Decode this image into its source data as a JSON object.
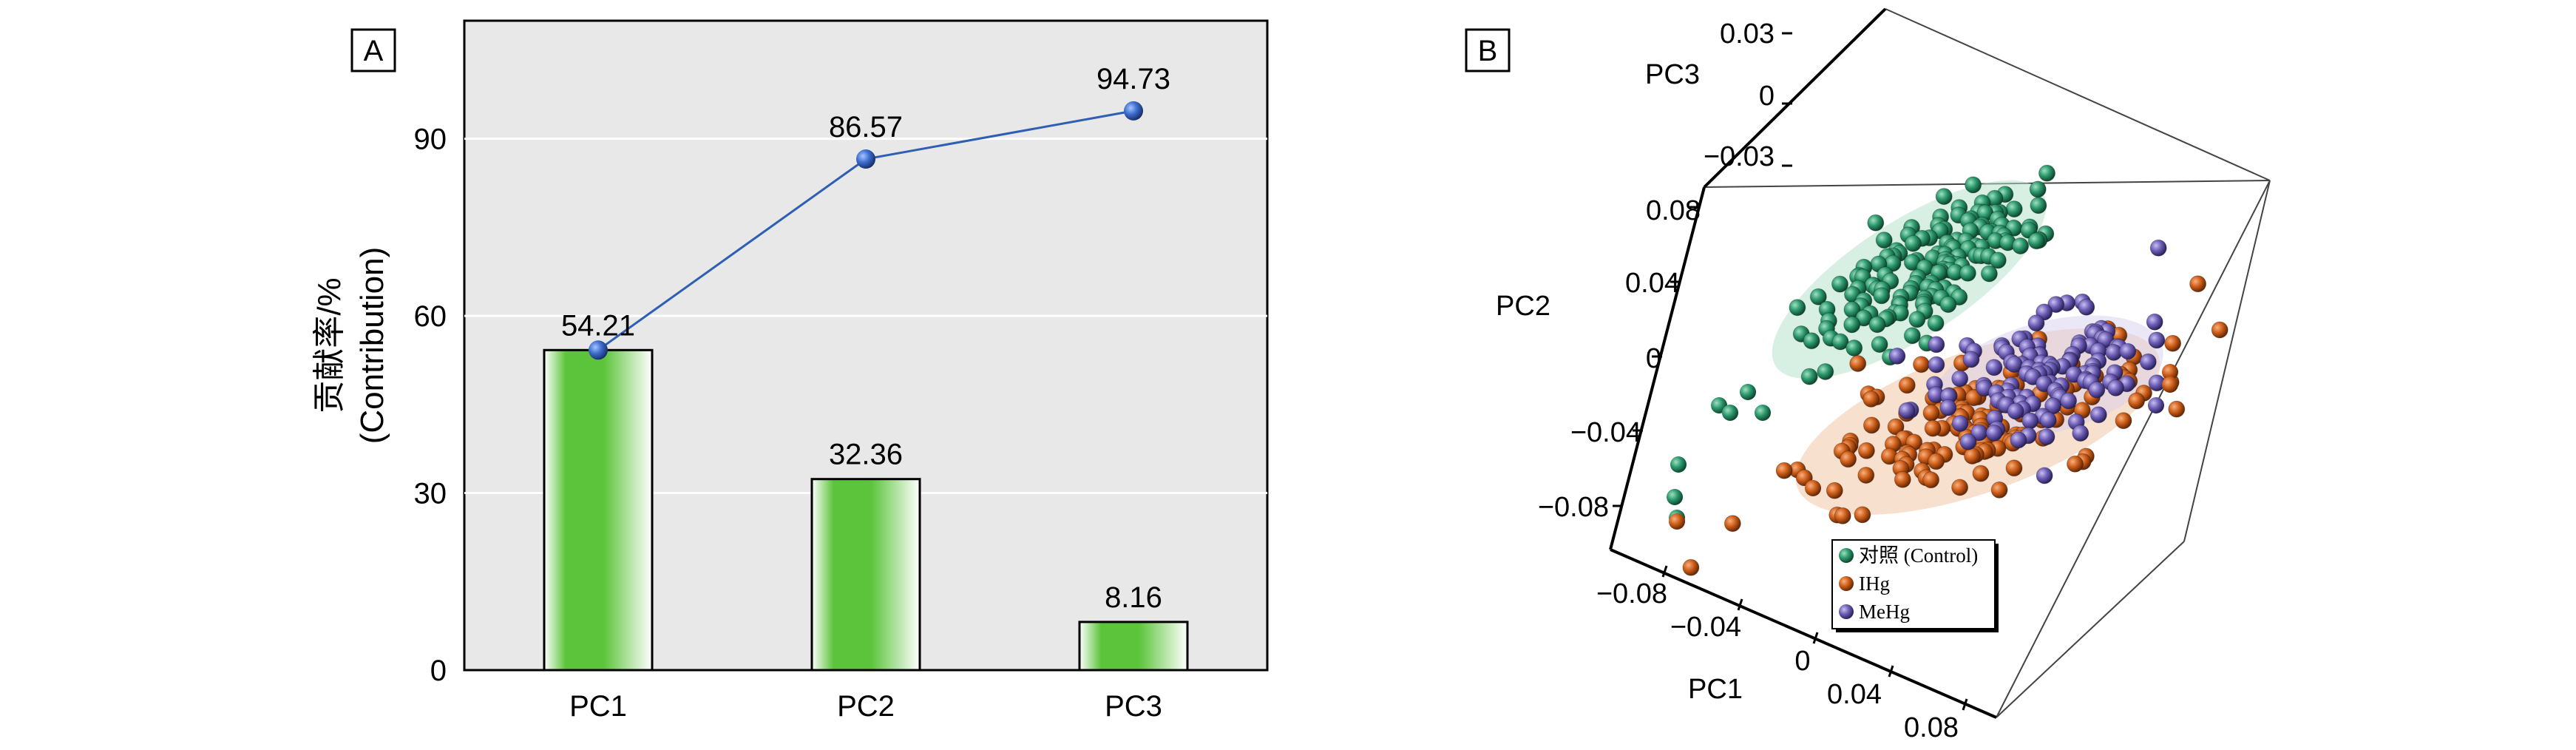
{
  "chart_data": [
    {
      "panel_label": "A",
      "type": "bar",
      "categories": [
        "PC1",
        "PC2",
        "PC3"
      ],
      "series": [
        {
          "values": [
            54.21,
            32.36,
            8.16
          ],
          "labels": [
            "54.21",
            "32.36",
            "8.16"
          ]
        },
        {
          "type": "line",
          "values": [
            54.21,
            86.57,
            94.73
          ],
          "labels": [
            "54.21",
            "86.57",
            "94.73"
          ]
        }
      ],
      "ylabel_line1": "贡献率/%",
      "ylabel_line2": "(Contribution)",
      "ylim": [
        0,
        110
      ],
      "yticks": [
        "0",
        "30",
        "60",
        "90"
      ],
      "grid": "horizontal",
      "colors": {
        "bar": "#5cc43a",
        "bar_edge": "#ffffff",
        "line": "#2f5fb3",
        "marker": "#3f6fd0",
        "plot_bg": "#e8e8e8"
      }
    },
    {
      "panel_label": "B",
      "type": "scatter",
      "xlabel": "PC1",
      "ylabel": "PC2",
      "zlabel": "PC3",
      "xticks": [
        "−0.08",
        "−0.04",
        "0",
        "0.04",
        "0.08"
      ],
      "yticks": [
        "0.08",
        "0.04",
        "0",
        "−0.04",
        "−0.08"
      ],
      "zticks": [
        "0.03",
        "0",
        "−0.03"
      ],
      "legend_position": "bottom-center",
      "series": [
        {
          "name": "对照 (Control)",
          "color": "#2e9a6e"
        },
        {
          "name": "IHg",
          "color": "#d0601a"
        },
        {
          "name": "MeHg",
          "color": "#7060b8"
        }
      ]
    }
  ]
}
